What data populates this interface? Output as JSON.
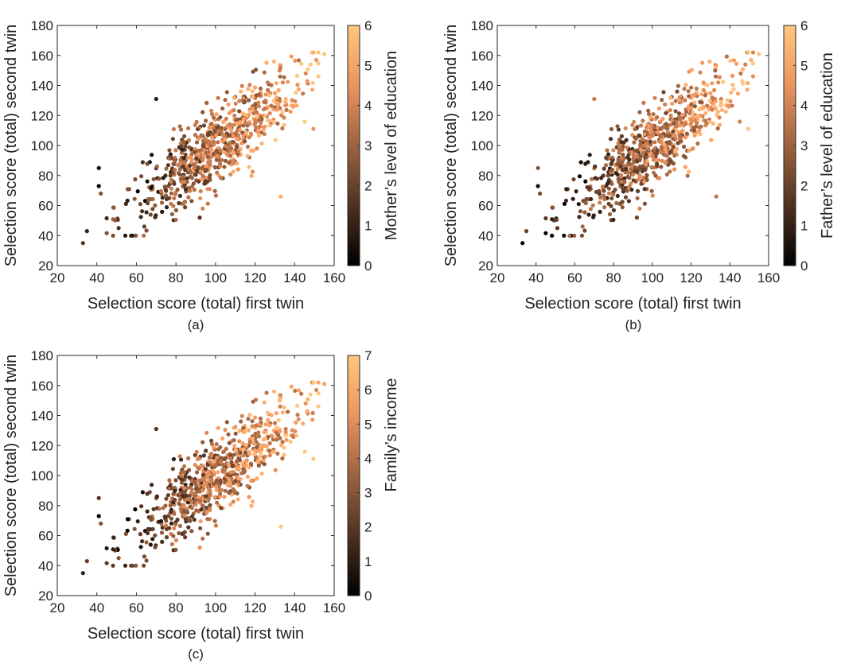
{
  "chart_data": [
    {
      "type": "scatter",
      "panel_label": "(a)",
      "xlabel": "Selection score (total) first twin",
      "ylabel": "Selection score (total) second twin",
      "xlim": [
        20,
        160
      ],
      "ylim": [
        20,
        180
      ],
      "x_ticks": [
        "20",
        "40",
        "60",
        "80",
        "100",
        "120",
        "140",
        "160"
      ],
      "y_ticks": [
        "20",
        "40",
        "60",
        "80",
        "100",
        "120",
        "140",
        "160",
        "180"
      ],
      "colorbar": {
        "label": "Mother’s level of education",
        "range": [
          0,
          6
        ],
        "ticks": [
          "0",
          "1",
          "2",
          "3",
          "4",
          "5",
          "6"
        ],
        "colormap": "copper"
      },
      "grid": false,
      "points_note": "~700 twin-pair points; values approximate",
      "seed": 11
    },
    {
      "type": "scatter",
      "panel_label": "(b)",
      "xlabel": "Selection score (total) first twin",
      "ylabel": "Selection score (total) second twin",
      "xlim": [
        20,
        160
      ],
      "ylim": [
        20,
        180
      ],
      "x_ticks": [
        "20",
        "40",
        "60",
        "80",
        "100",
        "120",
        "140",
        "160"
      ],
      "y_ticks": [
        "20",
        "40",
        "60",
        "80",
        "100",
        "120",
        "140",
        "160",
        "180"
      ],
      "colorbar": {
        "label": "Father’s level of education",
        "range": [
          0,
          6
        ],
        "ticks": [
          "0",
          "1",
          "2",
          "3",
          "4",
          "5",
          "6"
        ],
        "colormap": "copper"
      },
      "grid": false,
      "seed": 23
    },
    {
      "type": "scatter",
      "panel_label": "(c)",
      "xlabel": "Selection score (total) first twin",
      "ylabel": "Selection score (total) second twin",
      "xlim": [
        20,
        160
      ],
      "ylim": [
        20,
        180
      ],
      "x_ticks": [
        "20",
        "40",
        "60",
        "80",
        "100",
        "120",
        "140",
        "160"
      ],
      "y_ticks": [
        "20",
        "40",
        "60",
        "80",
        "100",
        "120",
        "140",
        "160",
        "180"
      ],
      "colorbar": {
        "label": "Family’s income",
        "range": [
          0,
          7
        ],
        "ticks": [
          "0",
          "1",
          "2",
          "3",
          "4",
          "5",
          "6",
          "7"
        ],
        "colormap": "copper"
      },
      "grid": false,
      "seed": 37
    }
  ],
  "anchor_points": [
    [
      33,
      35
    ],
    [
      35,
      43
    ],
    [
      41,
      85
    ],
    [
      41,
      73
    ],
    [
      42,
      68
    ],
    [
      51,
      45
    ],
    [
      64,
      46
    ],
    [
      70,
      131
    ],
    [
      92,
      52
    ],
    [
      133,
      66
    ],
    [
      148,
      154
    ],
    [
      151,
      157
    ],
    [
      155,
      161
    ]
  ],
  "colors": {
    "axis": "#262626",
    "background": "#ffffff"
  }
}
